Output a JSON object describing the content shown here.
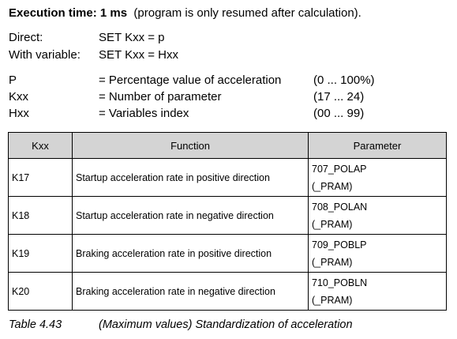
{
  "execution": {
    "label": "Execution time: 1 ms",
    "note": "(program is only resumed after calculation)."
  },
  "syntax": [
    [
      "Direct:",
      "SET Kxx = p"
    ],
    [
      "With variable:",
      "SET  Kxx = Hxx"
    ]
  ],
  "params": [
    [
      "P",
      "= Percentage value of acceleration",
      "(0 ... 100%)"
    ],
    [
      "Kxx",
      "= Number of parameter",
      "(17 ... 24)"
    ],
    [
      "Hxx",
      "= Variables index",
      "(00 ... 99)"
    ]
  ],
  "table": {
    "header": [
      "Kxx",
      "Function",
      "Parameter"
    ],
    "rows": [
      [
        "K17",
        "Startup acceleration rate in positive direction",
        [
          "707_POLAP",
          "(_PRAM)"
        ]
      ],
      [
        "K18",
        "Startup acceleration rate in negative direction",
        [
          "708_POLAN",
          "(_PRAM)"
        ]
      ],
      [
        "K19",
        "Braking acceleration rate in positive direction",
        [
          "709_POBLP",
          "(_PRAM)"
        ]
      ],
      [
        "K20",
        "Braking acceleration rate in negative direction",
        [
          "710_POBLN",
          "(_PRAM)"
        ]
      ]
    ]
  },
  "caption": {
    "number": "Table 4.43",
    "text": "(Maximum values) Standardization of acceleration"
  }
}
